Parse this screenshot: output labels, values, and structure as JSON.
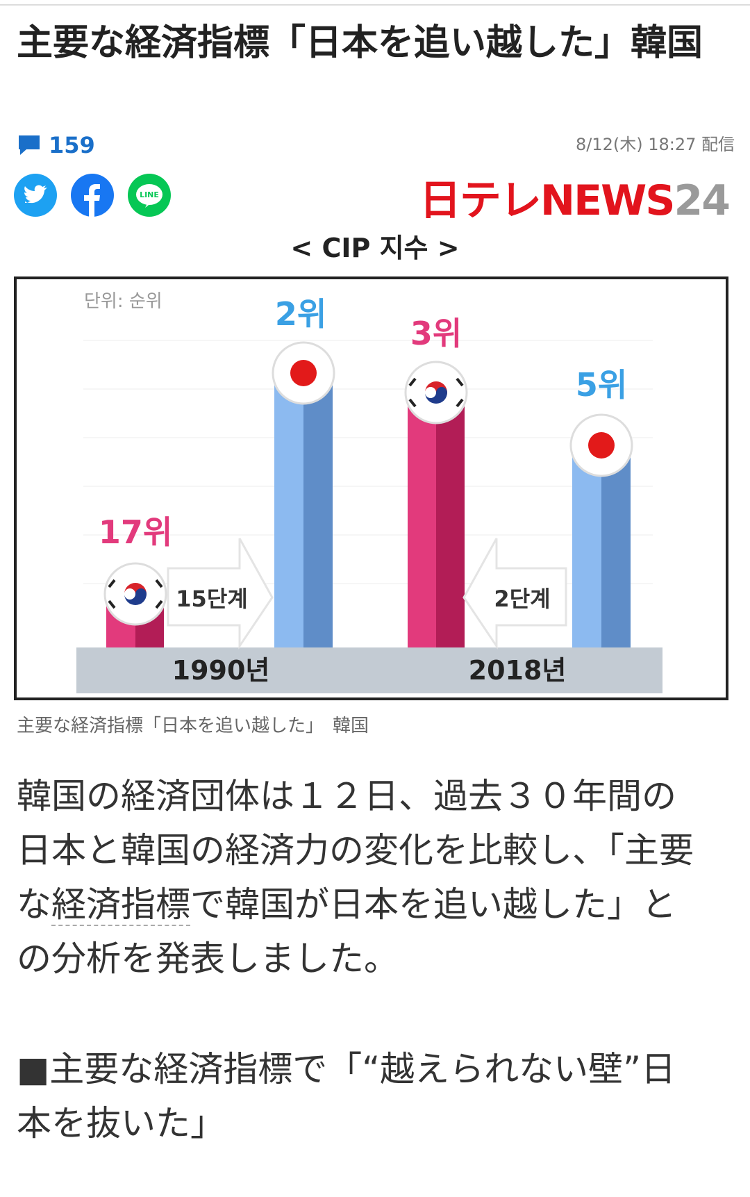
{
  "article": {
    "title": "主要な経済指標「日本を追い越した」韓国",
    "comment_count": "159",
    "date": "8/12(木) 18:27 配信",
    "logo_main": "日テレNEWS",
    "logo_num": "24",
    "figure": {
      "title": "< CIP 지수 >",
      "unit": "단위: 순위",
      "korea_1990": "17위",
      "japan_1990": "2위",
      "korea_2018": "3위",
      "japan_2018": "5위",
      "arrow_1990": "15단계",
      "arrow_2018": "2단계",
      "year_1990": "1990년",
      "year_2018": "2018년"
    },
    "caption": "主要な経済指標「日本を追い越した」　韓国",
    "paragraph": [
      "韓国の経済団体は１２日、過去３０年間の日本と韓国の経済力の変化を比較し、「主要な",
      "経済指標",
      "で韓国が日本を追い越した」との分析を発表しました。"
    ],
    "heading": "■主要な経済指標で「“越えられない壁”日本を抜いた」"
  }
}
